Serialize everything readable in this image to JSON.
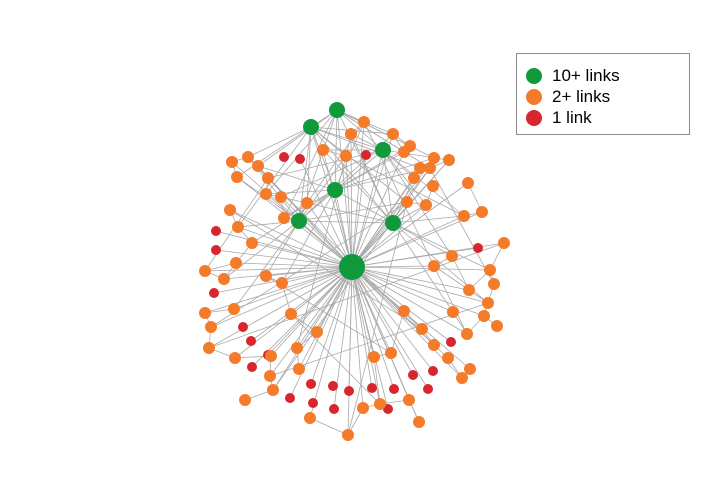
{
  "legend": {
    "items": [
      {
        "key": "hub",
        "label": "10+ links",
        "color": "#109a3c"
      },
      {
        "key": "mid",
        "label": "2+ links",
        "color": "#f47b2a"
      },
      {
        "key": "leaf",
        "label": "1 link",
        "color": "#d7262d"
      }
    ]
  },
  "edge_color": "#a9a9a9"
}
